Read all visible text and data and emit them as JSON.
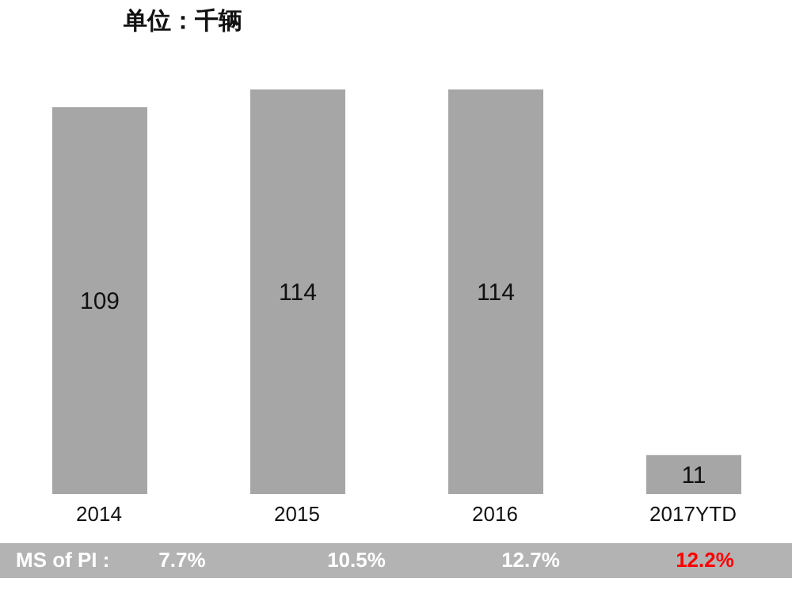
{
  "chart_data": {
    "type": "bar",
    "title": "单位：千辆",
    "categories": [
      "2014",
      "2015",
      "2016",
      "2017YTD"
    ],
    "values": [
      109,
      114,
      114,
      11
    ],
    "color": "#a6a6a6",
    "data_labels": true,
    "grid": false,
    "legend": false,
    "annotations": [
      "MS of PI :",
      "7.7%",
      "10.5%",
      "12.7%",
      "12.2%"
    ]
  }
}
